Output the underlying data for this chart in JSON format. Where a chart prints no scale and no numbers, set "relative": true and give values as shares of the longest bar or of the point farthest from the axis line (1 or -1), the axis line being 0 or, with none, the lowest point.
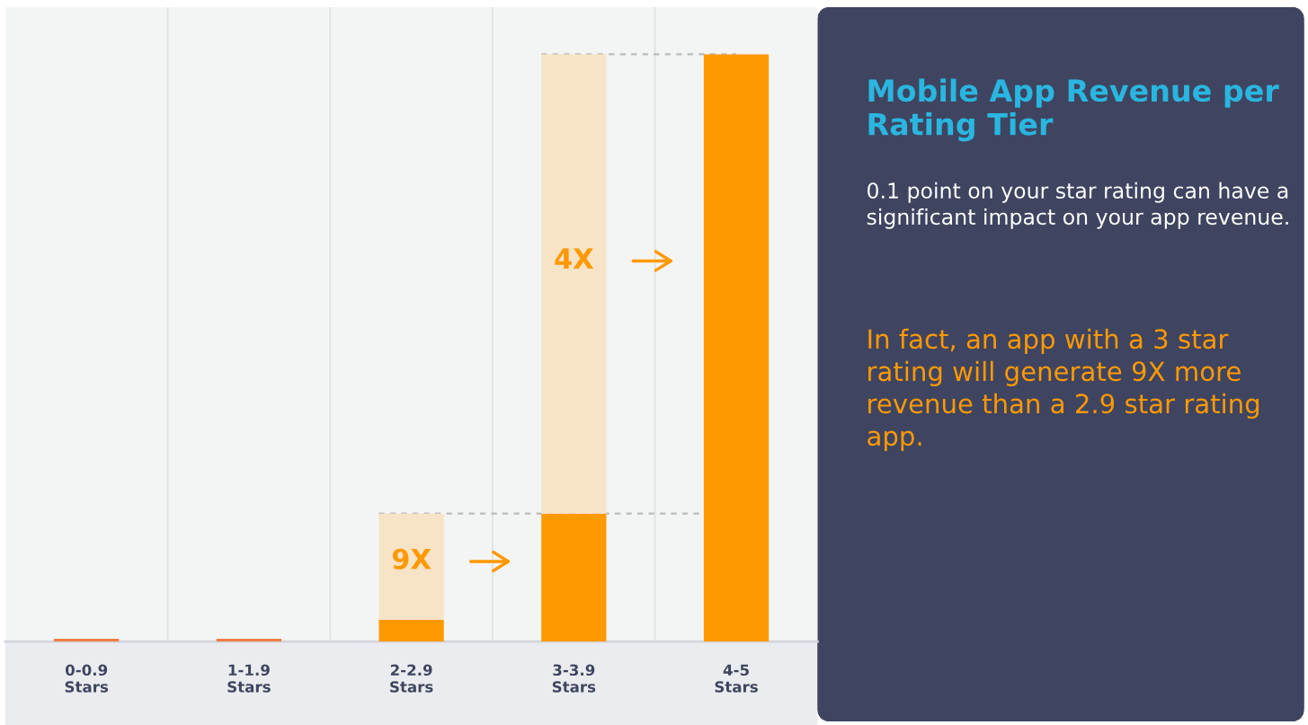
{
  "chart_data": {
    "type": "bar",
    "title": "Mobile App Revenue per Rating Tier",
    "subtitle": "0.1 point on your star rating can have a significant impact on your app revenue.",
    "categories": [
      "0-0.9\nStars",
      "1-1.9\nStars",
      "2-2.9\nStars",
      "3-3.9\nStars",
      "4-5\nStars"
    ],
    "relative": true,
    "stacked": true,
    "grid": "x",
    "legend": false,
    "series": [
      {
        "colors": [
          "#ee7d45",
          "#ee7d45",
          "#ff9900",
          "#ff9900",
          "#ff9900"
        ],
        "values": [
          0.005,
          0.005,
          0.037,
          0.218,
          1
        ]
      },
      {
        "color": "#f7e3c6",
        "values": [
          null,
          null,
          0.181,
          0.782,
          null
        ]
      }
    ],
    "ref_lines": [
      {
        "axis": "y",
        "value": 0.218,
        "color": "#bbbbbb",
        "line_style": "dashed"
      },
      {
        "axis": "y",
        "value": 1,
        "color": "#bbbbbb",
        "line_style": "dashed"
      }
    ],
    "annotations": [
      "9X",
      "4X",
      "In fact, an app with a 3 star rating will generate 9X more revenue than a 2.9 star rating app."
    ]
  }
}
